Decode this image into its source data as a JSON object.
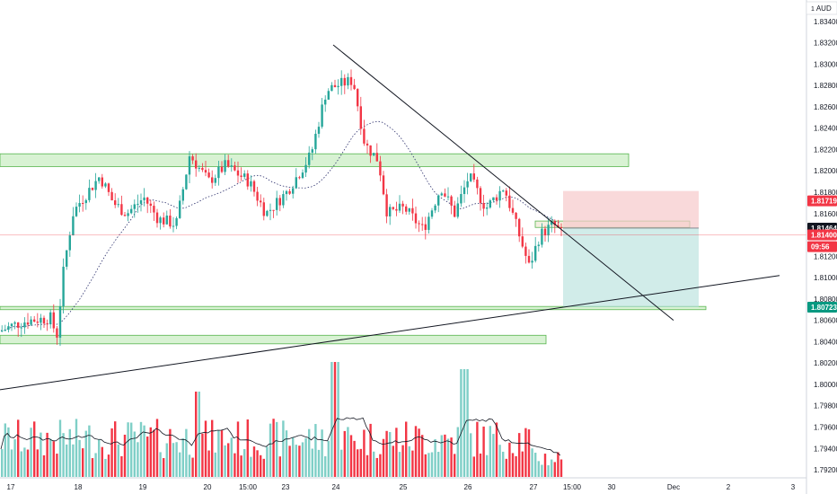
{
  "chart_data": {
    "type": "candlestick",
    "symbol_currency": "AUD",
    "y_axis": {
      "ticks": [
        "1.83400",
        "1.83200",
        "1.83000",
        "1.82800",
        "1.82600",
        "1.82400",
        "1.82200",
        "1.82000",
        "1.81800",
        "1.81600",
        "1.81200",
        "1.81000",
        "1.80800",
        "1.80600",
        "1.80400",
        "1.80200",
        "1.80000",
        "1.79800",
        "1.79600",
        "1.79400",
        "1.79200"
      ],
      "ylim": [
        1.7915,
        1.8355
      ]
    },
    "x_axis": {
      "ticks": [
        "17",
        "18",
        "19",
        "20",
        "15:00",
        "23",
        "24",
        "25",
        "26",
        "27",
        "15:00",
        "30",
        "Dec",
        "2",
        "3"
      ]
    },
    "price_tags": [
      {
        "label": "1.81719",
        "value": 1.81719,
        "color": "#f23645"
      },
      {
        "label": "1.81464",
        "value": 1.81464,
        "color": "#131722"
      },
      {
        "label": "1.81400",
        "value": 1.814,
        "color": "#f23645"
      },
      {
        "label": "09:56",
        "value": 1.8129,
        "color": "#f23645"
      },
      {
        "label": "1.80723",
        "value": 1.80723,
        "color": "#089981"
      }
    ],
    "current_price": 1.814,
    "trade": {
      "target": 1.80723,
      "entry": 1.81464,
      "stop": 1.81719
    },
    "zones": [
      {
        "low": 1.8204,
        "high": 1.8216
      },
      {
        "low": 1.8147,
        "high": 1.8153
      },
      {
        "low": 1.807,
        "high": 1.8073
      },
      {
        "low": 1.8038,
        "high": 1.8046
      }
    ],
    "trendlines": [
      {
        "from": [
          "23 14:00",
          1.8318
        ],
        "to": [
          "Dec",
          1.806
        ]
      },
      {
        "from": [
          "16 12:00",
          1.7995
        ],
        "to": [
          "2 12:00",
          1.8102
        ]
      }
    ],
    "colors": {
      "up": "#26a69a",
      "down": "#f23645",
      "volume_up": "#7fcfc7",
      "volume_down": "#f23645"
    }
  }
}
